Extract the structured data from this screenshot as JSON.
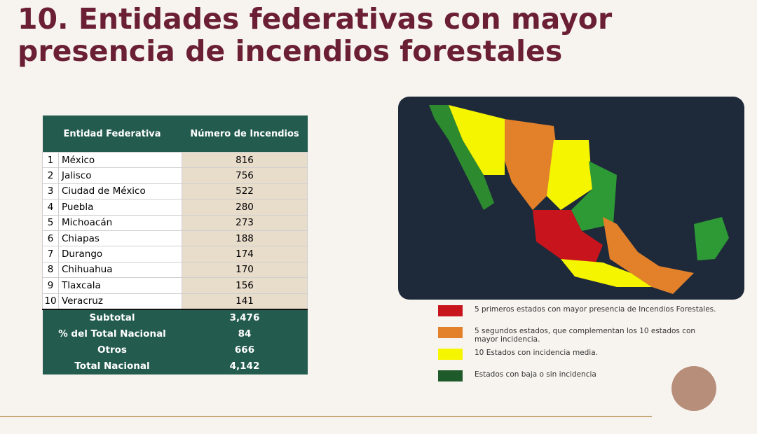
{
  "title": "10. Entidades federativas con mayor presencia de incendios forestales",
  "table": {
    "headers": [
      "Entidad Federativa",
      "Número de Incendios"
    ],
    "rows": [
      [
        1,
        "México",
        816
      ],
      [
        2,
        "Jalisco",
        756
      ],
      [
        3,
        "Ciudad de México",
        522
      ],
      [
        4,
        "Puebla",
        280
      ],
      [
        5,
        "Michoacán",
        273
      ],
      [
        6,
        "Chiapas",
        188
      ],
      [
        7,
        "Durango",
        174
      ],
      [
        8,
        "Chihuahua",
        170
      ],
      [
        9,
        "Tlaxcala",
        156
      ],
      [
        10,
        "Veracruz",
        141
      ]
    ],
    "summary": [
      [
        "Subtotal",
        "3,476"
      ],
      [
        "% del Total Nacional",
        "84"
      ],
      [
        "Otros",
        "666"
      ],
      [
        "Total Nacional",
        "4,142"
      ]
    ]
  },
  "legend": [
    {
      "color": "#c8141c",
      "label": "5 primeros estados con mayor presencia de Incendios Forestales."
    },
    {
      "color": "#e3812b",
      "label": "5 segundos estados, que complementan los 10 estados con mayor incidencia."
    },
    {
      "color": "#f5f500",
      "label": "10 Estados con incidencia media."
    },
    {
      "color": "#1f5a2a",
      "label": "Estados con baja o sin incidencia"
    }
  ]
}
